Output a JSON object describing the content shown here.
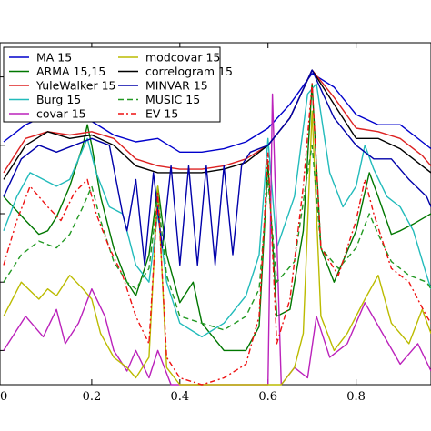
{
  "chart_data": {
    "type": "line",
    "title": "",
    "xlabel": "",
    "ylabel": "",
    "xlim": [
      0.0,
      0.97
    ],
    "ylim": [
      0.0,
      1.0
    ],
    "x_ticks": [
      "0.2",
      "0.4",
      "0.6",
      "0.8"
    ],
    "x_tick_values": [
      0.2,
      0.4,
      0.6,
      0.8
    ],
    "x_left_partial_label": "0",
    "grid": false,
    "legend": {
      "placement": "top-left",
      "columns": 2
    },
    "series": [
      {
        "name": "MA 15",
        "color": "#0000cc",
        "style": "solid",
        "x": [
          0,
          0.05,
          0.1,
          0.15,
          0.2,
          0.25,
          0.3,
          0.35,
          0.4,
          0.45,
          0.5,
          0.55,
          0.6,
          0.65,
          0.7,
          0.75,
          0.8,
          0.85,
          0.9,
          0.95,
          0.97
        ],
        "y": [
          0.71,
          0.76,
          0.79,
          0.77,
          0.77,
          0.73,
          0.71,
          0.72,
          0.68,
          0.68,
          0.69,
          0.71,
          0.75,
          0.82,
          0.91,
          0.87,
          0.79,
          0.76,
          0.76,
          0.71,
          0.69
        ]
      },
      {
        "name": "ARMA 15,15",
        "color": "#007700",
        "style": "solid",
        "x": [
          0,
          0.05,
          0.08,
          0.1,
          0.12,
          0.15,
          0.18,
          0.19,
          0.2,
          0.22,
          0.25,
          0.28,
          0.3,
          0.33,
          0.35,
          0.37,
          0.4,
          0.43,
          0.45,
          0.5,
          0.55,
          0.58,
          0.6,
          0.62,
          0.65,
          0.68,
          0.7,
          0.72,
          0.75,
          0.8,
          0.83,
          0.85,
          0.88,
          0.9,
          0.93,
          0.97
        ],
        "y": [
          0.55,
          0.48,
          0.44,
          0.45,
          0.49,
          0.58,
          0.7,
          0.76,
          0.7,
          0.55,
          0.4,
          0.3,
          0.26,
          0.38,
          0.58,
          0.38,
          0.24,
          0.3,
          0.18,
          0.1,
          0.1,
          0.17,
          0.65,
          0.2,
          0.22,
          0.45,
          0.88,
          0.4,
          0.3,
          0.45,
          0.62,
          0.55,
          0.44,
          0.45,
          0.47,
          0.5
        ]
      },
      {
        "name": "YuleWalker 15",
        "color": "#dd2222",
        "style": "solid",
        "x": [
          0,
          0.05,
          0.1,
          0.15,
          0.2,
          0.25,
          0.3,
          0.35,
          0.4,
          0.45,
          0.5,
          0.55,
          0.6,
          0.65,
          0.7,
          0.75,
          0.8,
          0.85,
          0.9,
          0.95,
          0.97
        ],
        "y": [
          0.62,
          0.72,
          0.74,
          0.73,
          0.74,
          0.72,
          0.66,
          0.64,
          0.63,
          0.63,
          0.64,
          0.66,
          0.7,
          0.78,
          0.92,
          0.84,
          0.75,
          0.74,
          0.72,
          0.67,
          0.64
        ]
      },
      {
        "name": "Burg 15",
        "color": "#22bbbb",
        "style": "solid",
        "x": [
          0,
          0.03,
          0.06,
          0.09,
          0.12,
          0.15,
          0.17,
          0.19,
          0.21,
          0.24,
          0.27,
          0.3,
          0.33,
          0.35,
          0.37,
          0.4,
          0.45,
          0.5,
          0.55,
          0.58,
          0.6,
          0.62,
          0.66,
          0.69,
          0.71,
          0.74,
          0.77,
          0.8,
          0.82,
          0.84,
          0.87,
          0.9,
          0.93,
          0.96,
          0.97
        ],
        "y": [
          0.45,
          0.55,
          0.62,
          0.6,
          0.58,
          0.6,
          0.66,
          0.72,
          0.62,
          0.52,
          0.5,
          0.35,
          0.3,
          0.5,
          0.3,
          0.18,
          0.14,
          0.18,
          0.26,
          0.38,
          0.72,
          0.4,
          0.55,
          0.85,
          0.88,
          0.62,
          0.52,
          0.58,
          0.7,
          0.63,
          0.55,
          0.52,
          0.45,
          0.32,
          0.28
        ]
      },
      {
        "name": "covar 15",
        "color": "#bb22bb",
        "style": "solid",
        "x": [
          0,
          0.05,
          0.09,
          0.12,
          0.14,
          0.17,
          0.2,
          0.23,
          0.25,
          0.28,
          0.3,
          0.33,
          0.35,
          0.38,
          0.42,
          0.45,
          0.5,
          0.55,
          0.6,
          0.61,
          0.63,
          0.66,
          0.69,
          0.71,
          0.74,
          0.78,
          0.82,
          0.86,
          0.9,
          0.94,
          0.97
        ],
        "y": [
          0.1,
          0.2,
          0.14,
          0.22,
          0.12,
          0.18,
          0.28,
          0.2,
          0.1,
          0.04,
          0.1,
          0.02,
          0.1,
          0.0,
          0.0,
          0.0,
          0.0,
          0.0,
          0.0,
          0.85,
          0.0,
          0.05,
          0.02,
          0.2,
          0.08,
          0.12,
          0.24,
          0.15,
          0.06,
          0.12,
          0.04
        ]
      },
      {
        "name": "modcovar 15",
        "color": "#bbbb00",
        "style": "solid",
        "x": [
          0,
          0.04,
          0.08,
          0.1,
          0.12,
          0.15,
          0.18,
          0.2,
          0.22,
          0.25,
          0.28,
          0.3,
          0.33,
          0.35,
          0.37,
          0.4,
          0.45,
          0.5,
          0.55,
          0.6,
          0.63,
          0.66,
          0.68,
          0.7,
          0.72,
          0.75,
          0.78,
          0.82,
          0.85,
          0.88,
          0.92,
          0.95,
          0.97
        ],
        "y": [
          0.2,
          0.3,
          0.25,
          0.28,
          0.26,
          0.32,
          0.28,
          0.25,
          0.15,
          0.08,
          0.05,
          0.02,
          0.08,
          0.58,
          0.05,
          0.0,
          0.0,
          0.0,
          0.0,
          0.0,
          0.0,
          0.05,
          0.15,
          0.8,
          0.2,
          0.1,
          0.15,
          0.25,
          0.32,
          0.18,
          0.12,
          0.22,
          0.15
        ]
      },
      {
        "name": "correlogram 15",
        "color": "#000000",
        "style": "solid",
        "x": [
          0,
          0.05,
          0.1,
          0.15,
          0.2,
          0.25,
          0.3,
          0.35,
          0.4,
          0.45,
          0.5,
          0.55,
          0.6,
          0.65,
          0.7,
          0.75,
          0.8,
          0.85,
          0.9,
          0.95,
          0.97
        ],
        "y": [
          0.6,
          0.7,
          0.74,
          0.72,
          0.73,
          0.7,
          0.64,
          0.62,
          0.62,
          0.62,
          0.63,
          0.65,
          0.7,
          0.78,
          0.92,
          0.82,
          0.72,
          0.72,
          0.69,
          0.64,
          0.62
        ]
      },
      {
        "name": "MINVAR 15",
        "color": "#0000aa",
        "style": "solid",
        "x": [
          0,
          0.04,
          0.08,
          0.12,
          0.16,
          0.2,
          0.24,
          0.27,
          0.28,
          0.3,
          0.32,
          0.34,
          0.36,
          0.38,
          0.4,
          0.42,
          0.44,
          0.46,
          0.48,
          0.5,
          0.52,
          0.54,
          0.56,
          0.6,
          0.65,
          0.7,
          0.75,
          0.8,
          0.84,
          0.88,
          0.92,
          0.96,
          0.97
        ],
        "y": [
          0.55,
          0.66,
          0.7,
          0.68,
          0.7,
          0.72,
          0.7,
          0.5,
          0.45,
          0.6,
          0.35,
          0.62,
          0.4,
          0.64,
          0.35,
          0.64,
          0.35,
          0.64,
          0.35,
          0.64,
          0.38,
          0.64,
          0.68,
          0.7,
          0.78,
          0.92,
          0.78,
          0.7,
          0.66,
          0.66,
          0.6,
          0.55,
          0.52
        ]
      },
      {
        "name": "MUSIC 15",
        "color": "#229922",
        "style": "dashed",
        "x": [
          0,
          0.04,
          0.08,
          0.12,
          0.15,
          0.18,
          0.2,
          0.22,
          0.25,
          0.28,
          0.3,
          0.33,
          0.35,
          0.37,
          0.4,
          0.45,
          0.5,
          0.55,
          0.58,
          0.6,
          0.62,
          0.66,
          0.69,
          0.7,
          0.72,
          0.76,
          0.8,
          0.83,
          0.85,
          0.88,
          0.92,
          0.96,
          0.97
        ],
        "y": [
          0.3,
          0.38,
          0.42,
          0.4,
          0.44,
          0.52,
          0.58,
          0.48,
          0.36,
          0.3,
          0.28,
          0.34,
          0.55,
          0.32,
          0.2,
          0.18,
          0.16,
          0.2,
          0.28,
          0.6,
          0.3,
          0.36,
          0.62,
          0.7,
          0.4,
          0.34,
          0.4,
          0.5,
          0.44,
          0.36,
          0.32,
          0.3,
          0.28
        ]
      },
      {
        "name": "EV 15",
        "color": "#ee1111",
        "style": "dashdot",
        "x": [
          0,
          0.03,
          0.06,
          0.1,
          0.13,
          0.16,
          0.19,
          0.21,
          0.24,
          0.27,
          0.3,
          0.33,
          0.35,
          0.37,
          0.4,
          0.45,
          0.5,
          0.55,
          0.58,
          0.6,
          0.62,
          0.65,
          0.68,
          0.7,
          0.72,
          0.76,
          0.8,
          0.82,
          0.84,
          0.88,
          0.92,
          0.96,
          0.97
        ],
        "y": [
          0.35,
          0.48,
          0.58,
          0.52,
          0.48,
          0.56,
          0.6,
          0.5,
          0.4,
          0.32,
          0.2,
          0.12,
          0.56,
          0.08,
          0.02,
          0.0,
          0.02,
          0.06,
          0.2,
          0.68,
          0.12,
          0.25,
          0.58,
          0.88,
          0.4,
          0.32,
          0.48,
          0.6,
          0.5,
          0.34,
          0.3,
          0.2,
          0.18
        ]
      }
    ]
  }
}
